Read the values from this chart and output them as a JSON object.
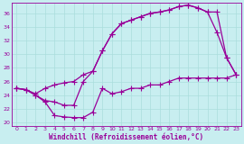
{
  "title": "",
  "xlabel": "Windchill (Refroidissement éolien,°C)",
  "ylabel": "",
  "bg_color": "#c8eef0",
  "line_color": "#990099",
  "xlim": [
    -0.5,
    23.5
  ],
  "ylim": [
    19.5,
    37.5
  ],
  "xticks": [
    0,
    1,
    2,
    3,
    4,
    5,
    6,
    7,
    8,
    9,
    10,
    11,
    12,
    13,
    14,
    15,
    16,
    17,
    18,
    19,
    20,
    21,
    22,
    23
  ],
  "yticks": [
    20,
    22,
    24,
    26,
    28,
    30,
    32,
    34,
    36
  ],
  "grid_color": "#aadddd",
  "curve1_x": [
    0,
    1,
    2,
    3,
    4,
    5,
    6,
    7,
    8,
    9,
    10,
    11,
    12,
    13,
    14,
    15,
    16,
    17,
    18,
    19,
    20,
    21,
    22,
    23
  ],
  "curve1_y": [
    25.0,
    24.8,
    24.0,
    23.0,
    21.0,
    20.8,
    20.7,
    20.7,
    21.5,
    25.0,
    24.2,
    24.5,
    25.0,
    25.0,
    25.5,
    25.5,
    26.0,
    26.5,
    26.5,
    26.5,
    26.5,
    26.5,
    26.5,
    27.0
  ],
  "curve2_x": [
    0,
    1,
    2,
    3,
    4,
    5,
    6,
    7,
    8,
    9,
    10,
    11,
    12,
    13,
    14,
    15,
    16,
    17,
    18,
    19,
    20,
    21,
    22,
    23
  ],
  "curve2_y": [
    25.0,
    24.8,
    24.2,
    25.0,
    25.5,
    25.8,
    26.0,
    27.0,
    27.5,
    30.5,
    33.0,
    34.5,
    35.0,
    35.5,
    36.0,
    36.2,
    36.5,
    37.0,
    37.2,
    36.8,
    36.2,
    33.2,
    29.5,
    27.0
  ],
  "curve3_x": [
    0,
    1,
    2,
    3,
    4,
    5,
    6,
    7,
    8,
    9,
    10,
    11,
    12,
    13,
    14,
    15,
    16,
    17,
    18,
    19,
    20,
    21,
    22,
    23
  ],
  "curve3_y": [
    25.0,
    24.8,
    24.0,
    23.2,
    23.0,
    22.5,
    22.5,
    26.0,
    27.5,
    30.5,
    33.0,
    34.5,
    35.0,
    35.5,
    36.0,
    36.2,
    36.5,
    37.0,
    37.2,
    36.8,
    36.2,
    36.2,
    29.5,
    27.0
  ],
  "marker": "+",
  "markersize": 4,
  "linewidth": 0.9
}
